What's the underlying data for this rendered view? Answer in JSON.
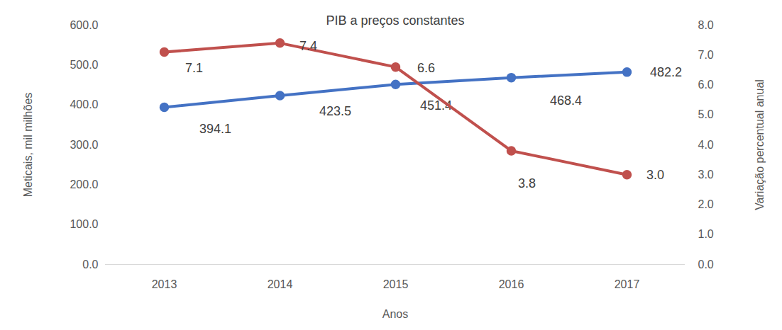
{
  "chart_data": {
    "type": "line",
    "title": "PIB a preços constantes",
    "x_label": "Anos",
    "y_label": "Meticais, mil milhões",
    "y2_label": "Variação percentual anual",
    "categories": [
      "2013",
      "2014",
      "2015",
      "2016",
      "2017"
    ],
    "series": [
      {
        "color": "#4472C4",
        "marker": "circle",
        "values": [
          394.1,
          423.5,
          451.4,
          468.4,
          482.2
        ]
      },
      {
        "color": "#C0504D",
        "marker": "circle",
        "axis": "y2",
        "values": [
          7.1,
          7.4,
          6.6,
          3.8,
          3.0
        ],
        "value_labels": [
          "7.1",
          "7.4",
          "6.6",
          "3.8",
          "3.0"
        ]
      }
    ],
    "ylim": [
      0,
      600
    ],
    "yticks": [
      {
        "value": 0,
        "label": "0.0"
      },
      {
        "value": 100,
        "label": "100.0"
      },
      {
        "value": 200,
        "label": "200.0"
      },
      {
        "value": 300,
        "label": "300.0"
      },
      {
        "value": 400,
        "label": "400.0"
      },
      {
        "value": 500,
        "label": "500.0"
      },
      {
        "value": 600,
        "label": "600.0"
      }
    ],
    "y2lim": [
      0,
      8
    ],
    "y2ticks": [
      {
        "value": 0,
        "label": "0.0"
      },
      {
        "value": 1,
        "label": "1.0"
      },
      {
        "value": 2,
        "label": "2.0"
      },
      {
        "value": 3,
        "label": "3.0"
      },
      {
        "value": 4,
        "label": "4.0"
      },
      {
        "value": 5,
        "label": "5.0"
      },
      {
        "value": 6,
        "label": "6.0"
      },
      {
        "value": 7,
        "label": "7.0"
      },
      {
        "value": 8,
        "label": "8.0"
      }
    ],
    "grid": false,
    "data_labels": true
  }
}
